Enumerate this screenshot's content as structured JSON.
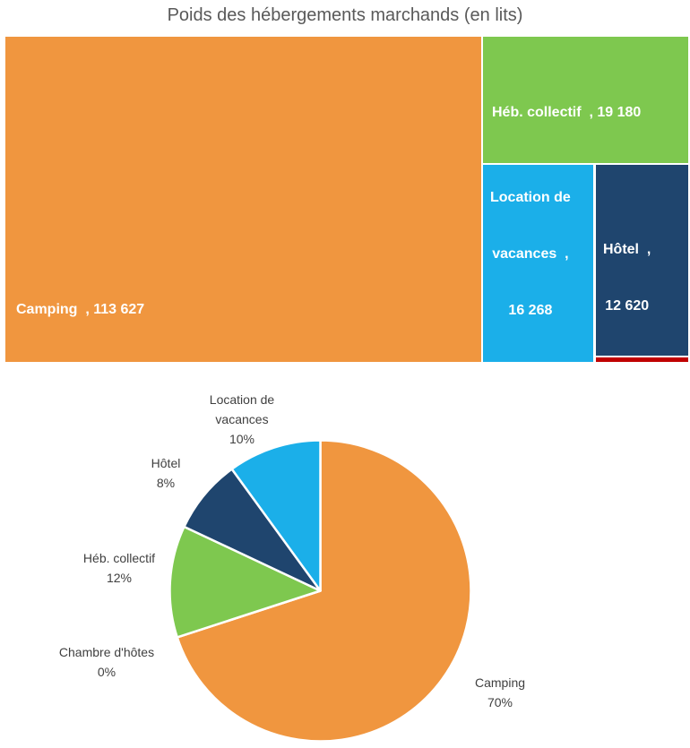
{
  "title": "Poids des hébergements marchands (en lits)",
  "title_color": "#595959",
  "background_color": "#FFFFFF",
  "chart_data": [
    {
      "type": "treemap",
      "title": "Poids des hébergements marchands (en lits)",
      "unit": "lits",
      "label_text_color": "#FFFFFF",
      "items": [
        {
          "name": "Camping",
          "value": 113627,
          "value_text": "113 627",
          "color": "#F0963F",
          "label_lines": [
            "Camping  , 113 627"
          ]
        },
        {
          "name": "Héb. collectif",
          "value": 19180,
          "value_text": "19 180",
          "color": "#7EC84F",
          "label_lines": [
            "Héb. collectif  , 19 180"
          ]
        },
        {
          "name": "Location de vacances",
          "value": 16268,
          "value_text": "16 268",
          "color": "#1BAFE9",
          "label_lines": [
            "Location de",
            "vacances  ,",
            "16 268"
          ]
        },
        {
          "name": "Hôtel",
          "value": 12620,
          "value_text": "12 620",
          "color": "#1F456E",
          "label_lines": [
            "Hôtel  ,",
            "12 620"
          ]
        },
        {
          "name": "Chambre d'hôtes",
          "value": null,
          "value_text": "",
          "color": "#C00000",
          "label_lines": []
        }
      ]
    },
    {
      "type": "pie",
      "categories": [
        "Camping",
        "Chambre d'hôtes",
        "Héb. collectif",
        "Hôtel",
        "Location de vacances"
      ],
      "values": [
        70,
        0,
        12,
        8,
        10
      ],
      "unit": "%",
      "colors": [
        "#F0963F",
        "#C00000",
        "#7EC84F",
        "#1F456E",
        "#1BAFE9"
      ],
      "start_angle_deg": 0,
      "direction": "clockwise",
      "radius_px": 168,
      "slice_border_color": "#FFFFFF",
      "label_text_color": "#404040",
      "legend": "none",
      "labels": [
        {
          "name": "Camping",
          "pct": "70%"
        },
        {
          "name": "Chambre d'hôtes",
          "pct": "0%"
        },
        {
          "name": "Héb. collectif",
          "pct": "12%"
        },
        {
          "name": "Hôtel",
          "pct": "8%"
        },
        {
          "name": "Location de vacances",
          "pct": "10%"
        }
      ]
    }
  ]
}
